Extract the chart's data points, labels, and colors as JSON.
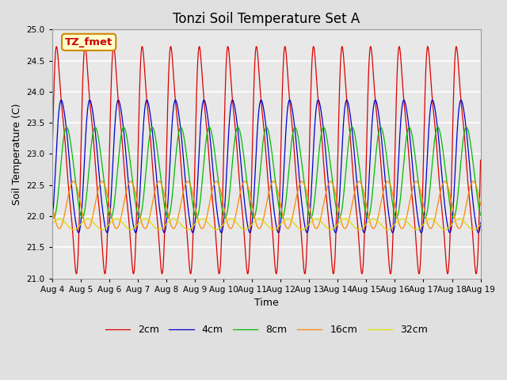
{
  "title": "Tonzi Soil Temperature Set A",
  "xlabel": "Time",
  "ylabel": "Soil Temperature (C)",
  "xlim_days": [
    4,
    19
  ],
  "ylim": [
    21.0,
    25.0
  ],
  "yticks": [
    21.0,
    21.5,
    22.0,
    22.5,
    23.0,
    23.5,
    24.0,
    24.5,
    25.0
  ],
  "xtick_labels": [
    "Aug 4",
    "Aug 5",
    "Aug 6",
    "Aug 7",
    "Aug 8",
    "Aug 9",
    "Aug 10",
    "Aug 11",
    "Aug 12",
    "Aug 13",
    "Aug 14",
    "Aug 15",
    "Aug 16",
    "Aug 17",
    "Aug 18",
    "Aug 19"
  ],
  "annotation_text": "TZ_fmet",
  "annotation_color": "#cc0000",
  "annotation_bg": "#ffffcc",
  "annotation_border": "#cc8800",
  "series": [
    {
      "label": "2cm",
      "color": "#dd0000",
      "amplitude": 1.55,
      "mean": 22.9,
      "phase_shift": 0.0,
      "harmonics": [
        1.0,
        0.35,
        0.12
      ],
      "harmonic_phases": [
        0.0,
        0.0,
        0.0
      ]
    },
    {
      "label": "4cm",
      "color": "#0000cc",
      "amplitude": 1.05,
      "mean": 22.8,
      "phase_shift": 0.12,
      "harmonics": [
        1.0,
        0.15,
        0.04
      ],
      "harmonic_phases": [
        0.0,
        0.0,
        0.0
      ]
    },
    {
      "label": "8cm",
      "color": "#00bb00",
      "amplitude": 0.72,
      "mean": 22.7,
      "phase_shift": 0.28,
      "harmonics": [
        1.0,
        0.08,
        0.0
      ],
      "harmonic_phases": [
        0.0,
        0.0,
        0.0
      ]
    },
    {
      "label": "16cm",
      "color": "#ff8800",
      "amplitude": 0.38,
      "mean": 22.18,
      "phase_shift": 0.5,
      "harmonics": [
        1.0,
        0.0,
        0.0
      ],
      "harmonic_phases": [
        0.0,
        0.0,
        0.0
      ]
    },
    {
      "label": "32cm",
      "color": "#dddd00",
      "amplitude": 0.085,
      "mean": 21.87,
      "phase_shift": 0.0,
      "harmonics": [
        1.0,
        0.0,
        0.0
      ],
      "harmonic_phases": [
        0.0,
        0.0,
        0.0
      ]
    }
  ],
  "bg_color": "#e0e0e0",
  "plot_bg": "#e8e8e8",
  "grid_color": "#ffffff",
  "title_fontsize": 12,
  "label_fontsize": 9,
  "tick_fontsize": 7.5,
  "legend_fontsize": 9
}
